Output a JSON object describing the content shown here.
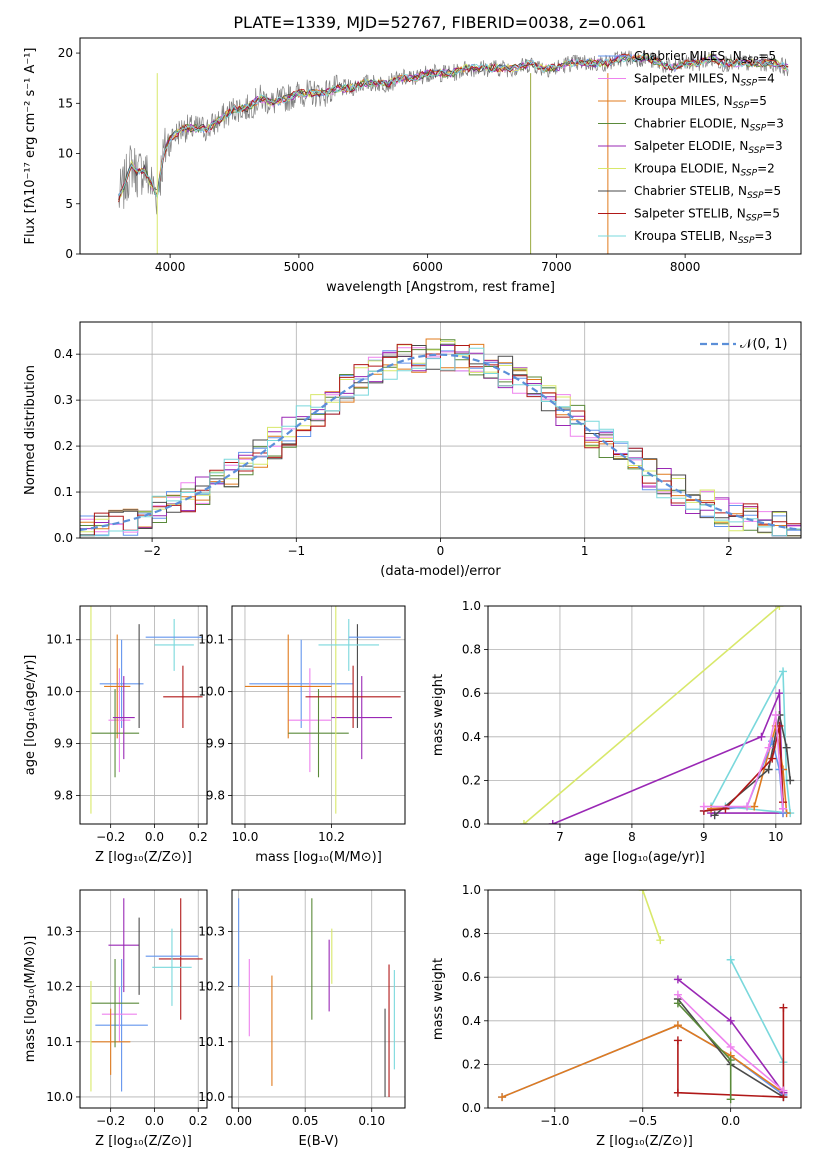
{
  "figure_title": "PLATE=1339, MJD=52767, FIBERID=0038, z=0.061",
  "palette": [
    "#6495ed",
    "#ee82ee",
    "#e07b1e",
    "#5a8a3a",
    "#9a28b5",
    "#d8e86a",
    "#4a4a4a",
    "#b01818",
    "#7ad8dc"
  ],
  "chart_data": [
    {
      "id": "spectrum",
      "type": "line",
      "xlabel": "wavelength [Angstrom, rest frame]",
      "ylabel": "Flux [fλ10⁻¹⁷ erg cm⁻² s⁻¹ A⁻¹]",
      "xlim": [
        3300,
        8900
      ],
      "ylim": [
        0,
        21.5
      ],
      "xticks": [
        "4000",
        "5000",
        "6000",
        "7000",
        "8000"
      ],
      "yticks": [
        "0",
        "5",
        "10",
        "15",
        "20"
      ],
      "legend_position": "right",
      "grid": false,
      "observed": {
        "color": "#808080",
        "x": [
          3600,
          3650,
          3700,
          3750,
          3800,
          3850,
          3900,
          3950,
          4000,
          4100,
          4200,
          4300,
          4400,
          4500,
          4600,
          4700,
          4800,
          4900,
          5000,
          5100,
          5200,
          5300,
          5400,
          5500,
          5600,
          5700,
          5800,
          5900,
          6000,
          6100,
          6200,
          6300,
          6400,
          6500,
          6600,
          6700,
          6800,
          6900,
          7000,
          7100,
          7200,
          7300,
          7400,
          7500,
          7600,
          7700,
          7800,
          7900,
          8000,
          8100,
          8200,
          8300,
          8400,
          8500,
          8600,
          8700,
          8800
        ],
        "y": [
          5.5,
          7.0,
          9.0,
          8.0,
          8.5,
          7.0,
          6.0,
          10.0,
          11.5,
          12.5,
          12.5,
          12.5,
          13.5,
          14.5,
          14.5,
          15.5,
          15.0,
          15.5,
          16.0,
          16.0,
          16.0,
          16.5,
          16.5,
          17.0,
          17.0,
          17.0,
          17.5,
          17.5,
          18.0,
          18.0,
          18.0,
          18.5,
          18.5,
          18.5,
          18.5,
          18.5,
          19.0,
          18.5,
          18.5,
          19.0,
          19.0,
          19.0,
          19.0,
          19.5,
          19.5,
          19.5,
          19.0,
          18.5,
          19.0,
          19.0,
          19.5,
          19.0,
          19.0,
          19.0,
          19.0,
          19.0,
          18.5
        ]
      },
      "series": [
        {
          "name": "Chabrier MILES, N_SSP=5",
          "color": "#6495ed"
        },
        {
          "name": "Salpeter MILES, N_SSP=4",
          "color": "#ee82ee"
        },
        {
          "name": "Kroupa MILES, N_SSP=5",
          "color": "#e07b1e"
        },
        {
          "name": "Chabrier ELODIE, N_SSP=3",
          "color": "#5a8a3a"
        },
        {
          "name": "Salpeter ELODIE, N_SSP=3",
          "color": "#9a28b5"
        },
        {
          "name": "Kroupa ELODIE, N_SSP=2",
          "color": "#d8e86a"
        },
        {
          "name": "Chabrier STELIB, N_SSP=5",
          "color": "#4a4a4a"
        },
        {
          "name": "Salpeter STELIB, N_SSP=5",
          "color": "#b01818"
        },
        {
          "name": "Kroupa STELIB, N_SSP=3",
          "color": "#7ad8dc"
        }
      ]
    },
    {
      "id": "residuals",
      "type": "step",
      "xlabel": "(data-model)/error",
      "ylabel": "Normed distribution",
      "xlim": [
        -2.5,
        2.5
      ],
      "ylim": [
        0,
        0.47
      ],
      "xticks": [
        "−2",
        "−1",
        "0",
        "1",
        "2"
      ],
      "yticks": [
        "0.0",
        "0.1",
        "0.2",
        "0.3",
        "0.4"
      ],
      "grid": true,
      "legend_position": "top-right",
      "gaussian_label": "𝒩(0, 1)",
      "gaussian_color": "#5b8fd8",
      "bin_width": 0.1
    },
    {
      "id": "age-vs-Z",
      "type": "errorbar",
      "xlabel": "Z [log₁₀(Z/Z⊙)]",
      "ylabel": "age  [log₁₀(age/yr)]",
      "xlim": [
        -0.34,
        0.24
      ],
      "ylim": [
        9.745,
        10.165
      ],
      "xticks": [
        "−0.2",
        "0.0",
        "0.2"
      ],
      "yticks": [
        "9.8",
        "9.9",
        "10.0",
        "10.1"
      ],
      "grid": true,
      "points": [
        {
          "x": -0.15,
          "xerr": 0.1,
          "y": 10.015,
          "yerr": 0.085
        },
        {
          "x": -0.16,
          "xerr": 0.05,
          "y": 9.945,
          "yerr": 0.1
        },
        {
          "x": -0.17,
          "xerr": 0.06,
          "y": 10.01,
          "yerr": 0.1
        },
        {
          "x": -0.18,
          "xerr": 0.11,
          "y": 9.92,
          "yerr": 0.085
        },
        {
          "x": -0.14,
          "xerr": 0.05,
          "y": 9.95,
          "yerr": 0.08
        },
        {
          "x": -0.29,
          "xerr": 0.0,
          "y": 10.0,
          "yerr": 0.235
        },
        {
          "x": -0.07,
          "xerr": 0.0,
          "y": 10.03,
          "yerr": 0.1
        },
        {
          "x": 0.13,
          "xerr": 0.09,
          "y": 9.99,
          "yerr": 0.06
        },
        {
          "x": 0.09,
          "xerr": 0.09,
          "y": 10.09,
          "yerr": 0.05
        },
        {
          "x": 0.09,
          "xerr": 0.13,
          "y": 10.105,
          "yerr": 0.0
        }
      ]
    },
    {
      "id": "age-vs-mass",
      "type": "errorbar",
      "xlabel": "mass [log₁₀(M/M⊙)]",
      "ylabel": "",
      "xlim": [
        9.97,
        10.37
      ],
      "ylim": [
        9.745,
        10.165
      ],
      "xticks": [
        "10.0",
        "10.2"
      ],
      "yticks": [
        "9.8",
        "9.9",
        "10.0",
        "10.1"
      ],
      "grid": true,
      "points": [
        {
          "x": 10.13,
          "xerr": 0.12,
          "y": 10.015,
          "yerr": 0.085
        },
        {
          "x": 10.15,
          "xerr": 0.05,
          "y": 9.945,
          "yerr": 0.1
        },
        {
          "x": 10.1,
          "xerr": 0.1,
          "y": 10.01,
          "yerr": 0.1
        },
        {
          "x": 10.17,
          "xerr": 0.07,
          "y": 9.92,
          "yerr": 0.085
        },
        {
          "x": 10.27,
          "xerr": 0.07,
          "y": 9.95,
          "yerr": 0.08
        },
        {
          "x": 10.21,
          "xerr": 0.0,
          "y": 10.0,
          "yerr": 0.235
        },
        {
          "x": 10.26,
          "xerr": 0.0,
          "y": 10.03,
          "yerr": 0.1
        },
        {
          "x": 10.25,
          "xerr": 0.11,
          "y": 9.99,
          "yerr": 0.06
        },
        {
          "x": 10.24,
          "xerr": 0.07,
          "y": 10.09,
          "yerr": 0.05
        },
        {
          "x": 10.3,
          "xerr": 0.06,
          "y": 10.105,
          "yerr": 0.0
        }
      ]
    },
    {
      "id": "weight-vs-age",
      "type": "line",
      "xlabel": "age  [log₁₀(age/yr)]",
      "ylabel": "mass weight",
      "xlim": [
        6.0,
        10.35
      ],
      "ylim": [
        0.0,
        1.0
      ],
      "xticks": [
        "7",
        "8",
        "9",
        "10"
      ],
      "yticks": [
        "0.0",
        "0.2",
        "0.4",
        "0.6",
        "0.8",
        "1.0"
      ],
      "grid": true,
      "series": [
        {
          "color": "#d8e86a",
          "x": [
            6.5,
            10.05
          ],
          "y": [
            0.0,
            1.0
          ]
        },
        {
          "color": "#9a28b5",
          "x": [
            6.9,
            9.8,
            10.05,
            10.1,
            9.1
          ],
          "y": [
            0.0,
            0.4,
            0.6,
            0.05,
            0.05
          ]
        },
        {
          "color": "#7ad8dc",
          "x": [
            9.1,
            10.1,
            10.15,
            10.2,
            9.3
          ],
          "y": [
            0.08,
            0.7,
            0.2,
            0.05,
            0.08
          ]
        },
        {
          "color": "#e07b1e",
          "x": [
            9.1,
            9.7,
            10.0,
            10.1,
            10.15
          ],
          "y": [
            0.07,
            0.08,
            0.45,
            0.25,
            0.05
          ]
        },
        {
          "color": "#6495ed",
          "x": [
            9.0,
            9.6,
            9.95,
            10.05,
            10.1
          ],
          "y": [
            0.06,
            0.08,
            0.38,
            0.25,
            0.05
          ]
        },
        {
          "color": "#4a4a4a",
          "x": [
            9.15,
            9.9,
            10.05,
            10.15,
            10.2
          ],
          "y": [
            0.04,
            0.25,
            0.5,
            0.35,
            0.2
          ]
        },
        {
          "color": "#b01818",
          "x": [
            9.0,
            9.3,
            9.95,
            10.05,
            10.1
          ],
          "y": [
            0.06,
            0.07,
            0.3,
            0.45,
            0.1
          ]
        },
        {
          "color": "#ee82ee",
          "x": [
            9.0,
            9.6,
            9.9,
            10.0,
            10.1
          ],
          "y": [
            0.08,
            0.08,
            0.35,
            0.5,
            0.07
          ]
        }
      ]
    },
    {
      "id": "mass-vs-Z",
      "type": "errorbar",
      "xlabel": "Z [log₁₀(Z/Z⊙)]",
      "ylabel": "mass [log₁₀(M/M⊙)]",
      "xlim": [
        -0.34,
        0.24
      ],
      "ylim": [
        9.98,
        10.375
      ],
      "xticks": [
        "−0.2",
        "0.0",
        "0.2"
      ],
      "yticks": [
        "10.0",
        "10.1",
        "10.2",
        "10.3"
      ],
      "grid": true,
      "points": [
        {
          "x": -0.15,
          "xerr": 0.12,
          "y": 10.13,
          "yerr": 0.12
        },
        {
          "x": -0.16,
          "xerr": 0.08,
          "y": 10.15,
          "yerr": 0.05
        },
        {
          "x": -0.2,
          "xerr": 0.09,
          "y": 10.1,
          "yerr": 0.06
        },
        {
          "x": -0.18,
          "xerr": 0.11,
          "y": 10.17,
          "yerr": 0.08
        },
        {
          "x": -0.14,
          "xerr": 0.07,
          "y": 10.275,
          "yerr": 0.085
        },
        {
          "x": -0.29,
          "xerr": 0.0,
          "y": 10.11,
          "yerr": 0.1
        },
        {
          "x": -0.07,
          "xerr": 0.0,
          "y": 10.255,
          "yerr": 0.07
        },
        {
          "x": 0.12,
          "xerr": 0.1,
          "y": 10.25,
          "yerr": 0.11
        },
        {
          "x": 0.08,
          "xerr": 0.09,
          "y": 10.235,
          "yerr": 0.07
        },
        {
          "x": 0.08,
          "xerr": 0.12,
          "y": 10.255,
          "yerr": 0.0
        }
      ]
    },
    {
      "id": "mass-vs-EBV",
      "type": "errorbar",
      "xlabel": "E(B-V)",
      "ylabel": "",
      "xlim": [
        -0.005,
        0.125
      ],
      "ylim": [
        9.98,
        10.375
      ],
      "xticks": [
        "0.00",
        "0.05",
        "0.10"
      ],
      "yticks": [
        "10.0",
        "10.1",
        "10.2",
        "10.3"
      ],
      "grid": true,
      "points": [
        {
          "x": 0.0,
          "y": 10.28,
          "yerr": 0.08
        },
        {
          "x": 0.008,
          "y": 10.18,
          "yerr": 0.07
        },
        {
          "x": 0.025,
          "y": 10.12,
          "yerr": 0.1
        },
        {
          "x": 0.055,
          "y": 10.25,
          "yerr": 0.11
        },
        {
          "x": 0.068,
          "y": 10.22,
          "yerr": 0.065
        },
        {
          "x": 0.07,
          "y": 10.255,
          "yerr": 0.05
        },
        {
          "x": 0.11,
          "y": 10.08,
          "yerr": 0.08
        },
        {
          "x": 0.113,
          "y": 10.12,
          "yerr": 0.12
        },
        {
          "x": 0.117,
          "y": 10.14,
          "yerr": 0.09
        }
      ]
    },
    {
      "id": "weight-vs-Z",
      "type": "line",
      "xlabel": "Z [log₁₀(Z/Z⊙)]",
      "ylabel": "mass weight",
      "xlim": [
        -1.38,
        0.4
      ],
      "ylim": [
        0.0,
        1.0
      ],
      "xticks": [
        "−1.0",
        "−0.5",
        "0.0"
      ],
      "yticks": [
        "0.0",
        "0.2",
        "0.4",
        "0.6",
        "0.8",
        "1.0"
      ],
      "grid": true,
      "series": [
        {
          "color": "#d8e86a",
          "x": [
            -0.5,
            -0.4
          ],
          "y": [
            1.0,
            0.77
          ]
        },
        {
          "color": "#6495ed",
          "x": [
            -1.3,
            -0.3,
            0.0,
            0.3
          ],
          "y": [
            0.05,
            0.38,
            0.24,
            0.06
          ]
        },
        {
          "color": "#e07b1e",
          "x": [
            -1.3,
            -0.3,
            0.0,
            0.3
          ],
          "y": [
            0.05,
            0.38,
            0.24,
            0.07
          ]
        },
        {
          "color": "#9a28b5",
          "x": [
            -0.3,
            0.0,
            0.3
          ],
          "y": [
            0.59,
            0.4,
            0.07
          ]
        },
        {
          "color": "#7ad8dc",
          "x": [
            0.0,
            0.3,
            0.3
          ],
          "y": [
            0.68,
            0.21,
            0.05
          ]
        },
        {
          "color": "#4a4a4a",
          "x": [
            -0.3,
            0.0,
            0.3
          ],
          "y": [
            0.5,
            0.2,
            0.05
          ]
        },
        {
          "color": "#b01818",
          "x": [
            -0.3,
            -0.3,
            0.3,
            0.3
          ],
          "y": [
            0.31,
            0.07,
            0.05,
            0.46
          ]
        },
        {
          "color": "#ee82ee",
          "x": [
            -0.3,
            0.0,
            0.3
          ],
          "y": [
            0.52,
            0.28,
            0.08
          ]
        },
        {
          "color": "#5a8a3a",
          "x": [
            -0.3,
            0.0,
            0.0
          ],
          "y": [
            0.48,
            0.22,
            0.04
          ]
        }
      ]
    }
  ]
}
